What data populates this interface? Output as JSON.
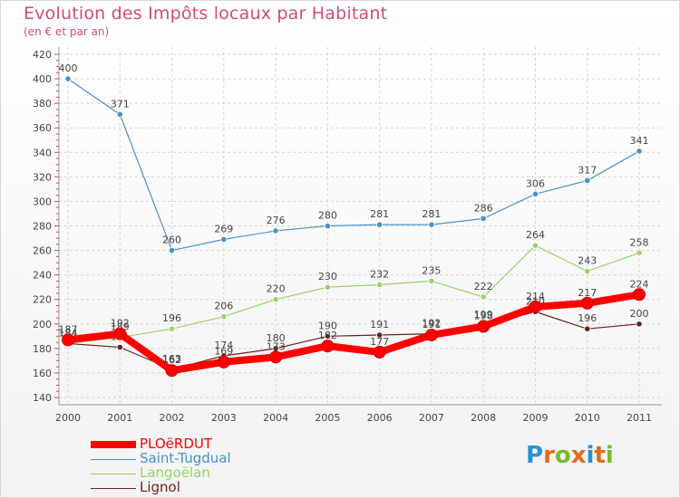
{
  "header": {
    "title": "Evolution des Impôts locaux par Habitant",
    "subtitle": "(en € et par an)"
  },
  "logo": {
    "letters": [
      "P",
      "r",
      "o",
      "x",
      "i",
      "t",
      "i"
    ],
    "colors": [
      "#2a8fd4",
      "#e36b1c",
      "#7cb82f",
      "#e36b1c",
      "#2a8fd4",
      "#e36b1c",
      "#7cb82f"
    ]
  },
  "chart_data": {
    "type": "line",
    "title": "Evolution des Impôts locaux par Habitant",
    "subtitle": "(en € et par an)",
    "xlabel": "",
    "ylabel": "",
    "x": [
      "2000",
      "2001",
      "2002",
      "2003",
      "2004",
      "2005",
      "2006",
      "2007",
      "2008",
      "2009",
      "2010",
      "2011"
    ],
    "ylim": [
      140,
      420
    ],
    "yticks": [
      140,
      160,
      180,
      200,
      220,
      240,
      260,
      280,
      300,
      320,
      340,
      360,
      380,
      400,
      420
    ],
    "grid": true,
    "legend_position": "bottom-left",
    "series": [
      {
        "name": "Saint-Tugdual",
        "color": "#4a90c8",
        "values": [
          400,
          371,
          260,
          269,
          276,
          280,
          281,
          281,
          286,
          306,
          317,
          341
        ]
      },
      {
        "name": "Langoëlan",
        "color": "#99d36a",
        "values": [
          184,
          189,
          196,
          206,
          220,
          230,
          232,
          235,
          222,
          264,
          243,
          258
        ]
      },
      {
        "name": "Lignol",
        "color": "#6b1f1f",
        "values": [
          184,
          181,
          163,
          174,
          180,
          190,
          191,
          192,
          199,
          210,
          196,
          200
        ]
      },
      {
        "name": "PLOëRDUT",
        "color": "#ff0000",
        "values": [
          187,
          192,
          162,
          169,
          173,
          182,
          177,
          191,
          198,
          214,
          217,
          224
        ]
      }
    ]
  }
}
